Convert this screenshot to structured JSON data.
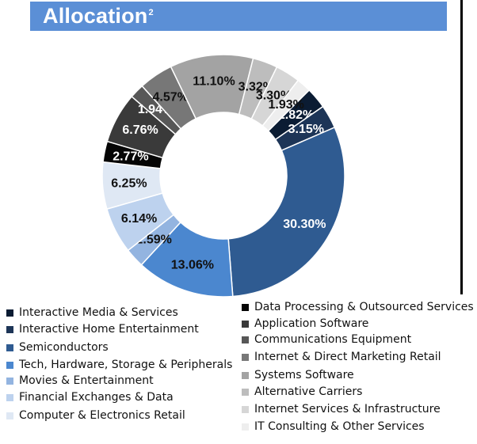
{
  "header": {
    "title": "Allocation",
    "superscript": "2"
  },
  "chart_data": {
    "type": "pie",
    "variant": "donut",
    "series": [
      {
        "name": "Interactive Media & Services",
        "value": 2.82,
        "label": "2.82%",
        "color": "#0b1c33"
      },
      {
        "name": "Interactive Home Entertainment",
        "value": 3.15,
        "label": "3.15%",
        "color": "#1d3557"
      },
      {
        "name": "Semiconductors",
        "value": 30.3,
        "label": "30.30%",
        "color": "#2f5b91"
      },
      {
        "name": "Tech, Hardware, Storage & Peripherals",
        "value": 13.06,
        "label": "13.06%",
        "color": "#4b87cf"
      },
      {
        "name": "Movies & Entertainment",
        "value": 2.59,
        "label": "2.59%",
        "color": "#93b4e0"
      },
      {
        "name": "Financial Exchanges & Data",
        "value": 6.14,
        "label": "6.14%",
        "color": "#bdd2ee"
      },
      {
        "name": "Computer & Electronics Retail",
        "value": 6.25,
        "label": "6.25%",
        "color": "#dfe8f4"
      },
      {
        "name": "Data Processing & Outsourced Services",
        "value": 2.77,
        "label": "2.77%",
        "color": "#050505"
      },
      {
        "name": "Application Software",
        "value": 6.76,
        "label": "6.76%",
        "color": "#3a3a3a"
      },
      {
        "name": "Communications Equipment",
        "value": 1.94,
        "label": "1.94%",
        "color": "#575757"
      },
      {
        "name": "Internet & Direct Marketing Retail",
        "value": 4.57,
        "label": "4.57%",
        "color": "#777777"
      },
      {
        "name": "Systems Software",
        "value": 11.1,
        "label": "11.10%",
        "color": "#a3a3a3"
      },
      {
        "name": "Alternative Carriers",
        "value": 3.32,
        "label": "3.32%",
        "color": "#bdbdbd"
      },
      {
        "name": "Internet Services & Infrastructure",
        "value": 3.3,
        "label": "3.30%",
        "color": "#d6d6d6"
      },
      {
        "name": "IT Consulting & Other Services",
        "value": 1.93,
        "label": "1.93%",
        "color": "#eeeeee"
      }
    ],
    "legend": "bottom"
  }
}
